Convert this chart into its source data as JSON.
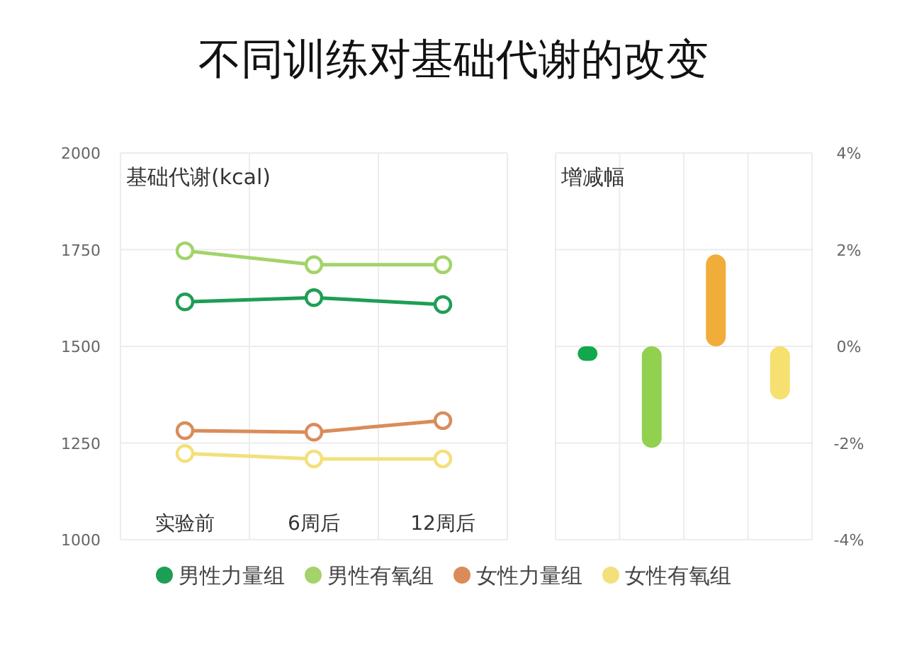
{
  "chart_data": [
    {
      "type": "line",
      "title": "不同训练对基础代谢的改变",
      "ylabel": "基础代谢(kcal)",
      "categories": [
        "实验前",
        "6周后",
        "12周后"
      ],
      "series": [
        {
          "name": "男性力量组",
          "color": "#1e9e55",
          "values": [
            1615,
            1626,
            1608
          ]
        },
        {
          "name": "男性有氧组",
          "color": "#a3d36a",
          "values": [
            1747,
            1711,
            1711
          ]
        },
        {
          "name": "女性力量组",
          "color": "#d98c5a",
          "values": [
            1282,
            1278,
            1308
          ]
        },
        {
          "name": "女性有氧组",
          "color": "#f3e07a",
          "values": [
            1223,
            1209,
            1209
          ]
        }
      ],
      "ylim": [
        1000,
        2000
      ],
      "yticks": [
        1000,
        1250,
        1500,
        1750,
        2000
      ],
      "grid": true,
      "marker": "circle",
      "legend": "bottom"
    },
    {
      "type": "bar",
      "ylabel": "增减幅",
      "categories": [
        null,
        null,
        null,
        null
      ],
      "values": [
        -0.3,
        -2.1,
        1.9,
        -1.1
      ],
      "base": [
        0,
        0,
        0,
        0
      ],
      "colors": [
        "#12a84e",
        "#92d050",
        "#f0ad3a",
        "#f5e070"
      ],
      "ylim": [
        -4,
        4
      ],
      "yticks": [
        {
          "value": -4,
          "label": "-4%"
        },
        {
          "value": -2,
          "label": "-2%"
        },
        {
          "value": 0,
          "label": "0%"
        },
        {
          "value": 2,
          "label": "2%"
        },
        {
          "value": 4,
          "label": "4%"
        }
      ],
      "grid": true
    }
  ]
}
